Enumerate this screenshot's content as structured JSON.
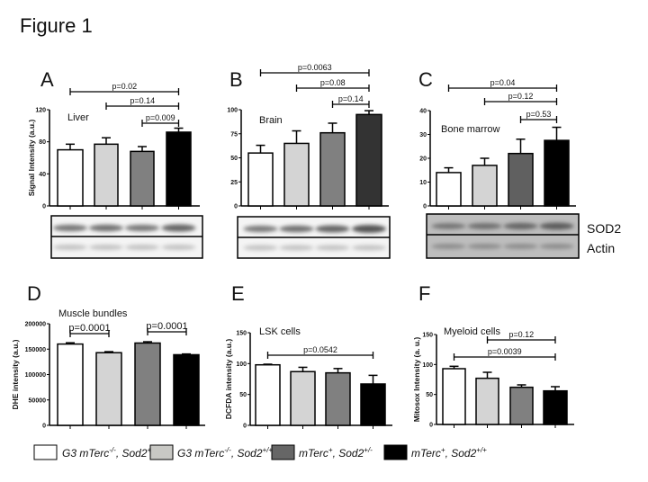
{
  "figure_title": "Figure 1",
  "blot_labels": {
    "top": "SOD2",
    "bottom": "Actin"
  },
  "legend": [
    {
      "color": "#ffffff",
      "parts": [
        "G3 mTerc",
        "-/-",
        ", Sod2",
        "+/-"
      ]
    },
    {
      "color": "#c8c8c4",
      "parts": [
        "G3 mTerc",
        "-/-",
        ", Sod2",
        "+/+"
      ]
    },
    {
      "color": "#666666",
      "parts": [
        "mTerc",
        "+",
        ", Sod2",
        "+/-"
      ]
    },
    {
      "color": "#000000",
      "parts": [
        "mTerc",
        "+",
        ", Sod2",
        "+/+"
      ]
    }
  ],
  "chart_data": [
    {
      "panel": "A",
      "type": "bar",
      "title": "Liver",
      "ylabel": "Signal Intensity (a.u.)",
      "ylim": [
        0,
        120
      ],
      "yticks": [
        0,
        40,
        80,
        120
      ],
      "values": [
        70,
        77,
        68,
        92
      ],
      "errors": [
        7,
        8,
        6,
        5
      ],
      "colors": [
        "#ffffff",
        "#d4d4d4",
        "#808080",
        "#000000"
      ],
      "comparisons": [
        {
          "from": 1,
          "to": 4,
          "label": "p=0.02"
        },
        {
          "from": 2,
          "to": 4,
          "label": "p=0.14"
        },
        {
          "from": 3,
          "to": 4,
          "label": "p=0.009"
        }
      ],
      "blot": true
    },
    {
      "panel": "B",
      "type": "bar",
      "title": "Brain",
      "ylabel": "",
      "ylim": [
        0,
        100
      ],
      "yticks": [
        0,
        25,
        50,
        75,
        100
      ],
      "values": [
        55,
        65,
        76,
        95
      ],
      "errors": [
        8,
        13,
        10,
        4
      ],
      "colors": [
        "#ffffff",
        "#d4d4d4",
        "#808080",
        "#333333"
      ],
      "comparisons": [
        {
          "from": 1,
          "to": 4,
          "label": "p=0.0063"
        },
        {
          "from": 2,
          "to": 4,
          "label": "p=0.08"
        },
        {
          "from": 3,
          "to": 4,
          "label": "p=0.14"
        }
      ],
      "blot": true
    },
    {
      "panel": "C",
      "type": "bar",
      "title": "Bone marrow",
      "ylabel": "",
      "ylim": [
        0,
        40
      ],
      "yticks": [
        0,
        10,
        20,
        30,
        40
      ],
      "values": [
        14,
        17,
        22,
        27.5
      ],
      "errors": [
        2,
        3,
        6,
        5.5
      ],
      "colors": [
        "#ffffff",
        "#d4d4d4",
        "#606060",
        "#000000"
      ],
      "comparisons": [
        {
          "from": 1,
          "to": 4,
          "label": "p=0.04"
        },
        {
          "from": 2,
          "to": 4,
          "label": "p=0.12"
        },
        {
          "from": 3,
          "to": 4,
          "label": "p=0.53"
        }
      ],
      "blot": true
    },
    {
      "panel": "D",
      "type": "bar",
      "title": "Muscle bundles",
      "ylabel": "DHE intensity (a.u.)",
      "ylim": [
        0,
        200000
      ],
      "yticks": [
        0,
        50000,
        100000,
        150000,
        200000
      ],
      "values": [
        160000,
        143000,
        162000,
        139000
      ],
      "errors": [
        2500,
        2000,
        2500,
        1500
      ],
      "colors": [
        "#ffffff",
        "#d4d4d4",
        "#808080",
        "#000000"
      ],
      "comparisons": [
        {
          "from": 1,
          "to": 2,
          "label": "p=0.0001"
        },
        {
          "from": 3,
          "to": 4,
          "label": "p=0.0001"
        }
      ],
      "blot": false
    },
    {
      "panel": "E",
      "type": "bar",
      "title": "LSK cells",
      "ylabel": "DCFDA intensity (a.u.)",
      "ylim": [
        0,
        150
      ],
      "yticks": [
        0,
        50,
        100,
        150
      ],
      "values": [
        98,
        87,
        85,
        67
      ],
      "errors": [
        1,
        7,
        7,
        14
      ],
      "colors": [
        "#ffffff",
        "#d4d4d4",
        "#808080",
        "#000000"
      ],
      "comparisons": [
        {
          "from": 1,
          "to": 4,
          "label": "p=0.0542"
        }
      ],
      "blot": false
    },
    {
      "panel": "F",
      "type": "bar",
      "title": "Myeloid cells",
      "ylabel": "Mitosox Intensity (a. u.)",
      "ylim": [
        0,
        150
      ],
      "yticks": [
        0,
        50,
        100,
        150
      ],
      "values": [
        93,
        77,
        62,
        56
      ],
      "errors": [
        4,
        10,
        4,
        7
      ],
      "colors": [
        "#ffffff",
        "#d4d4d4",
        "#808080",
        "#000000"
      ],
      "comparisons": [
        {
          "from": 2,
          "to": 4,
          "label": "p=0.12"
        },
        {
          "from": 1,
          "to": 4,
          "label": "p=0.0039"
        }
      ],
      "blot": false
    }
  ]
}
